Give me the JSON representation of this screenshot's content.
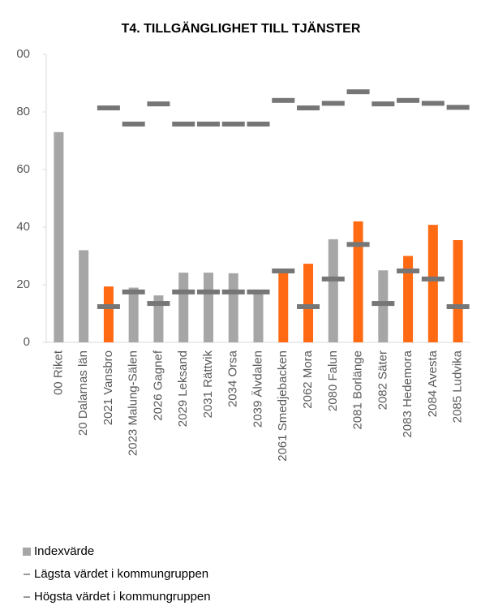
{
  "chart_data": {
    "type": "bar",
    "title": "T4. TILLGÄNGLIGHET TILL TJÄNSTER",
    "categories": [
      "00 Riket",
      "20 Dalarnas län",
      "2021 Vansbro",
      "2023 Malung-Sälen",
      "2026 Gagnef",
      "2029 Leksand",
      "2031 Rättvik",
      "2034 Orsa",
      "2039 Älvdalen",
      "2061 Smedjebacken",
      "2062 Mora",
      "2080 Falun",
      "2081 Borlänge",
      "2082 Säter",
      "2083 Hedemora",
      "2084 Avesta",
      "2085 Ludvika"
    ],
    "series": [
      {
        "name": "Indexvärde",
        "color": "#a6a6a6",
        "colors": [
          "#a6a6a6",
          "#a6a6a6",
          "#ff6a13",
          "#a6a6a6",
          "#a6a6a6",
          "#a6a6a6",
          "#a6a6a6",
          "#a6a6a6",
          "#a6a6a6",
          "#ff6a13",
          "#ff6a13",
          "#a6a6a6",
          "#ff6a13",
          "#a6a6a6",
          "#ff6a13",
          "#ff6a13",
          "#ff6a13"
        ],
        "values": [
          73,
          32,
          19.4,
          19,
          16.3,
          24.2,
          24.2,
          24,
          18,
          25,
          27.3,
          35.8,
          42,
          25,
          30,
          40.8,
          35.5
        ]
      },
      {
        "name": "Lägsta värdet i kommungruppen",
        "color": "#767676",
        "values": [
          null,
          null,
          12.4,
          17.5,
          13.5,
          17.5,
          17.5,
          17.5,
          17.5,
          24.8,
          12.4,
          22,
          34,
          13.5,
          24.8,
          22,
          12.4
        ]
      },
      {
        "name": "Högsta värdet i kommungruppen",
        "color": "#767676",
        "values": [
          null,
          null,
          81.4,
          75.8,
          82.8,
          75.8,
          75.8,
          75.8,
          75.8,
          84,
          81.4,
          83,
          87,
          82.8,
          84,
          83,
          81.6
        ]
      }
    ],
    "ylim": [
      0,
      100
    ],
    "yticks": [
      0,
      20,
      40,
      60,
      80,
      {
        "value": 100,
        "label": "00"
      }
    ],
    "grid": false
  }
}
